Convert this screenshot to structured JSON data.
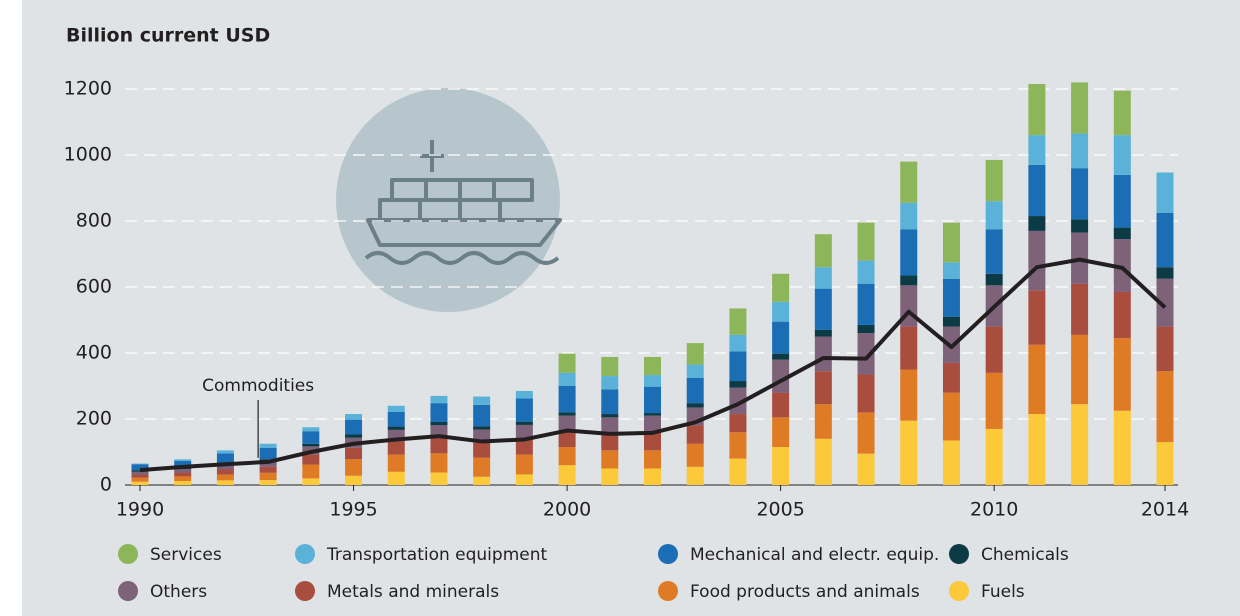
{
  "chart_data": {
    "type": "stacked-bar-line",
    "ylabel": "Billion current USD",
    "x": [
      1990,
      1991,
      1992,
      1993,
      1994,
      1995,
      1996,
      1997,
      1998,
      1999,
      2000,
      2001,
      2002,
      2003,
      2004,
      2005,
      2006,
      2007,
      2008,
      2009,
      2010,
      2011,
      2012,
      2013,
      2014
    ],
    "xlim": [
      1990,
      2014
    ],
    "xticks": [
      1990,
      1995,
      2000,
      2005,
      2010,
      2014
    ],
    "ylim": [
      0,
      1200
    ],
    "yticks": [
      0,
      200,
      400,
      600,
      800,
      1000,
      1200
    ],
    "grid": true,
    "series": [
      {
        "name": "Services",
        "color": "#8db55a",
        "values": [
          null,
          null,
          null,
          null,
          null,
          null,
          null,
          null,
          null,
          null,
          58,
          58,
          55,
          65,
          80,
          85,
          100,
          115,
          125,
          120,
          125,
          155,
          155,
          135,
          null
        ]
      },
      {
        "name": "Transportation equipment",
        "color": "#5ab2d8",
        "values": [
          2,
          5,
          9,
          12,
          12,
          17,
          18,
          22,
          25,
          23,
          40,
          40,
          35,
          40,
          50,
          60,
          65,
          70,
          80,
          50,
          85,
          90,
          105,
          120,
          122
        ]
      },
      {
        "name": "Mechanical and electr. equip.",
        "color": "#1b6db5",
        "values": [
          18,
          20,
          30,
          35,
          38,
          45,
          45,
          57,
          65,
          70,
          80,
          75,
          80,
          77,
          90,
          97,
          125,
          125,
          140,
          115,
          135,
          155,
          155,
          160,
          165
        ]
      },
      {
        "name": "Chemicals",
        "color": "#0d3b45",
        "values": [
          5,
          5,
          6,
          7,
          8,
          10,
          10,
          10,
          10,
          10,
          10,
          10,
          8,
          13,
          20,
          18,
          20,
          25,
          30,
          30,
          35,
          45,
          40,
          35,
          35
        ]
      },
      {
        "name": "Others",
        "color": "#7e6279",
        "values": [
          8,
          10,
          13,
          16,
          25,
          30,
          35,
          40,
          40,
          40,
          50,
          55,
          50,
          55,
          80,
          100,
          105,
          125,
          125,
          110,
          125,
          180,
          155,
          160,
          145
        ]
      },
      {
        "name": "Metals and minerals",
        "color": "#a94d3f",
        "values": [
          10,
          12,
          15,
          18,
          30,
          35,
          40,
          45,
          45,
          50,
          45,
          45,
          55,
          55,
          55,
          75,
          100,
          115,
          130,
          90,
          140,
          165,
          155,
          140,
          135
        ]
      },
      {
        "name": "Food products and animals",
        "color": "#e07b25",
        "values": [
          12,
          14,
          18,
          22,
          42,
          50,
          52,
          58,
          58,
          60,
          55,
          55,
          55,
          70,
          80,
          90,
          105,
          125,
          155,
          145,
          170,
          210,
          210,
          220,
          215
        ]
      },
      {
        "name": "Fuels",
        "color": "#fbc93a",
        "values": [
          10,
          12,
          14,
          15,
          20,
          28,
          40,
          38,
          25,
          32,
          60,
          50,
          50,
          55,
          80,
          115,
          140,
          95,
          195,
          135,
          170,
          215,
          245,
          225,
          130
        ]
      }
    ],
    "line": {
      "name": "Commodities",
      "color": "#231f20",
      "values": [
        45,
        55,
        63,
        70,
        100,
        125,
        138,
        148,
        132,
        138,
        165,
        155,
        158,
        190,
        245,
        315,
        385,
        383,
        525,
        418,
        540,
        660,
        683,
        658,
        538
      ]
    }
  }
}
